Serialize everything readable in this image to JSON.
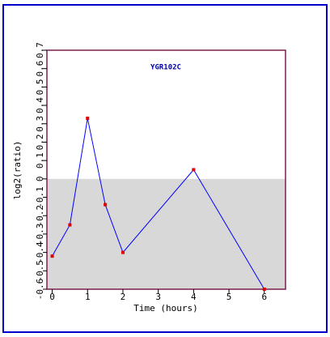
{
  "chart_data": {
    "type": "line",
    "title": "YGR102C",
    "x_label": "Time (hours)",
    "y_label": "log2(ratio)",
    "x": [
      0,
      0.5,
      1,
      1.5,
      2,
      4,
      6
    ],
    "series": [
      {
        "name": "YGR102C",
        "color": "#0000ff",
        "marker_color": "#dd0000",
        "values": [
          -0.42,
          -0.25,
          0.33,
          -0.14,
          -0.4,
          0.05,
          -0.6
        ]
      }
    ],
    "xlim": [
      -0.15,
      6.6
    ],
    "xticks": [
      0,
      1,
      2,
      3,
      4,
      5,
      6
    ],
    "ylim": [
      -0.6,
      0.7
    ],
    "yticks": [
      -0.6,
      -0.5,
      -0.4,
      -0.3,
      -0.2,
      -0.1,
      0,
      0.1,
      0.2,
      0.3,
      0.4,
      0.5,
      0.6,
      0.7
    ],
    "grid": false
  }
}
